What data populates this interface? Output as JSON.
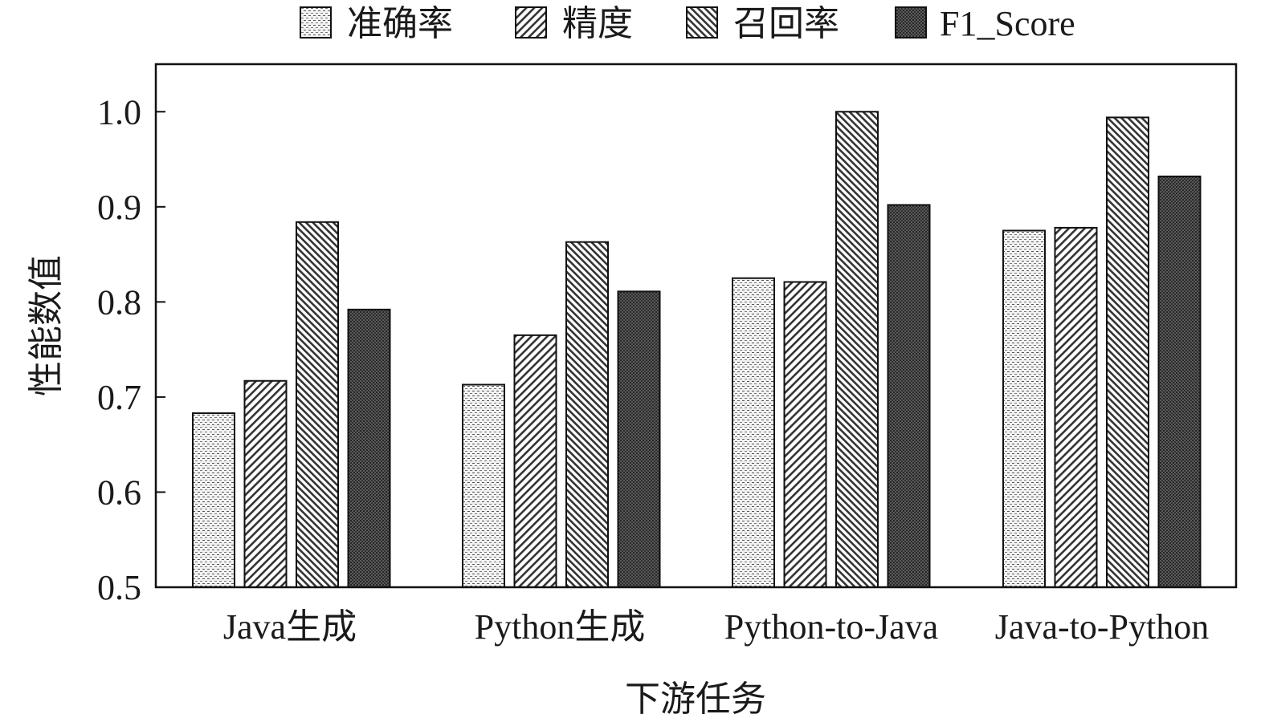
{
  "chart_data": {
    "type": "bar",
    "categories": [
      "Java生成",
      "Python生成",
      "Python-to-Java",
      "Java-to-Python"
    ],
    "series": [
      {
        "name": "准确率",
        "values": [
          0.683,
          0.713,
          0.825,
          0.875
        ]
      },
      {
        "name": "精度",
        "values": [
          0.717,
          0.765,
          0.821,
          0.878
        ]
      },
      {
        "name": "召回率",
        "values": [
          0.884,
          0.863,
          1.0,
          0.994
        ]
      },
      {
        "name": "F1_Score",
        "values": [
          0.792,
          0.811,
          0.902,
          0.932
        ]
      }
    ],
    "xlabel": "下游任务",
    "ylabel": "性能数值",
    "ylim": [
      0.5,
      1.05
    ],
    "yticks": [
      "0.5",
      "0.6",
      "0.7",
      "0.8",
      "0.9",
      "1.0"
    ],
    "grid": false,
    "legend_position": "top"
  }
}
